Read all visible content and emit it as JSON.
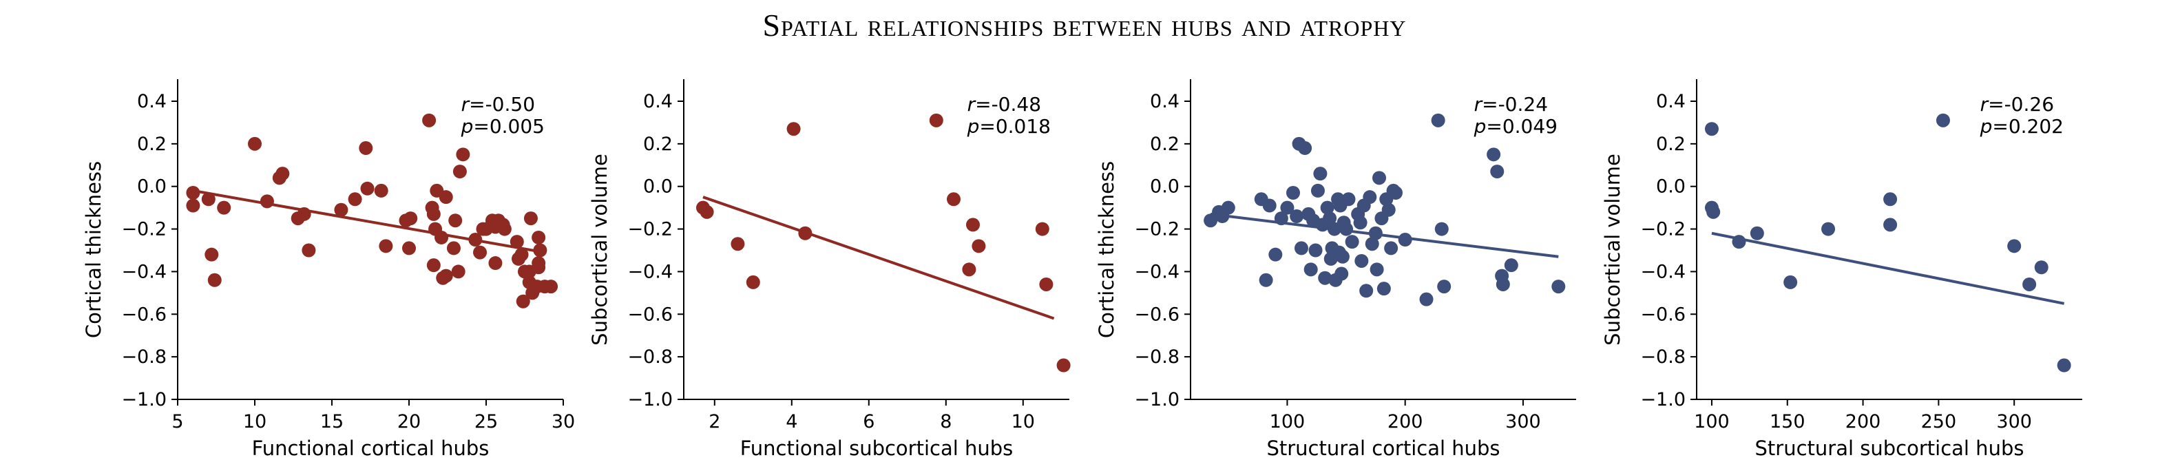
{
  "title": "Spatial relationships between hubs and atrophy",
  "colors": {
    "red": "#8f2a22",
    "blue": "#3e4f7c"
  },
  "chart_data": [
    {
      "type": "scatter",
      "color": "red",
      "xlabel": "Functional cortical hubs",
      "ylabel": "Cortical thickness",
      "xlim": [
        5,
        30
      ],
      "ylim": [
        -1.0,
        0.45
      ],
      "xticks": [
        5,
        10,
        15,
        20,
        25,
        30
      ],
      "xtick_labels": [
        "5",
        "10",
        "15",
        "20",
        "25",
        "30"
      ],
      "yticks": [
        -1.0,
        -0.8,
        -0.6,
        -0.4,
        -0.2,
        0.0,
        0.2,
        0.4
      ],
      "ytick_labels": [
        "−1.0",
        "−0.8",
        "−0.6",
        "−0.4",
        "−0.2",
        "0.0",
        "0.2",
        "0.4"
      ],
      "r_text": "=-0.50",
      "p_text": "=0.005",
      "fit": [
        [
          6,
          -0.02
        ],
        [
          28.8,
          -0.31
        ]
      ],
      "points": [
        [
          6,
          -0.03
        ],
        [
          6,
          -0.09
        ],
        [
          7,
          -0.06
        ],
        [
          7.2,
          -0.32
        ],
        [
          7.4,
          -0.44
        ],
        [
          8,
          -0.1
        ],
        [
          10,
          0.2
        ],
        [
          10.8,
          -0.07
        ],
        [
          11.6,
          0.04
        ],
        [
          11.8,
          0.06
        ],
        [
          12.8,
          -0.15
        ],
        [
          13.2,
          -0.13
        ],
        [
          13.5,
          -0.3
        ],
        [
          15.6,
          -0.11
        ],
        [
          16.5,
          -0.06
        ],
        [
          17.2,
          0.18
        ],
        [
          17.3,
          -0.01
        ],
        [
          18.2,
          -0.02
        ],
        [
          18.5,
          -0.28
        ],
        [
          19.8,
          -0.16
        ],
        [
          20.1,
          -0.15
        ],
        [
          20,
          -0.29
        ],
        [
          21.3,
          0.31
        ],
        [
          21.5,
          -0.1
        ],
        [
          21.6,
          -0.13
        ],
        [
          21.8,
          -0.02
        ],
        [
          21.7,
          -0.2
        ],
        [
          21.6,
          -0.37
        ],
        [
          22.1,
          -0.24
        ],
        [
          22.2,
          -0.43
        ],
        [
          22.4,
          -0.42
        ],
        [
          22.4,
          -0.05
        ],
        [
          22.9,
          -0.29
        ],
        [
          23,
          -0.16
        ],
        [
          23.2,
          -0.4
        ],
        [
          23.3,
          0.07
        ],
        [
          23.5,
          0.15
        ],
        [
          24.3,
          -0.25
        ],
        [
          24.6,
          -0.31
        ],
        [
          24.8,
          -0.2
        ],
        [
          25,
          -0.2
        ],
        [
          25.4,
          -0.16
        ],
        [
          25.6,
          -0.19
        ],
        [
          25.6,
          -0.36
        ],
        [
          25.8,
          -0.16
        ],
        [
          26.1,
          -0.18
        ],
        [
          26.2,
          -0.2
        ],
        [
          27,
          -0.26
        ],
        [
          27.1,
          -0.34
        ],
        [
          27.3,
          -0.32
        ],
        [
          27.5,
          -0.4
        ],
        [
          27.4,
          -0.54
        ],
        [
          27.8,
          -0.45
        ],
        [
          27.9,
          -0.15
        ],
        [
          27.8,
          -0.4
        ],
        [
          28,
          -0.5
        ],
        [
          28.3,
          -0.47
        ],
        [
          28.4,
          -0.36
        ],
        [
          28.4,
          -0.24
        ],
        [
          28.5,
          -0.3
        ],
        [
          28.4,
          -0.38
        ],
        [
          28.8,
          -0.47
        ],
        [
          29.2,
          -0.47
        ]
      ]
    },
    {
      "type": "scatter",
      "color": "red",
      "xlabel": "Functional subcortical hubs",
      "ylabel": "Subcortical volume",
      "xlim": [
        1.2,
        11.2
      ],
      "ylim": [
        -1.0,
        0.45
      ],
      "xticks": [
        2,
        4,
        6,
        8,
        10
      ],
      "xtick_labels": [
        "2",
        "4",
        "6",
        "8",
        "10"
      ],
      "yticks": [
        -1.0,
        -0.8,
        -0.6,
        -0.4,
        -0.2,
        0.0,
        0.2,
        0.4
      ],
      "ytick_labels": [
        "−1.0",
        "−0.8",
        "−0.6",
        "−0.4",
        "−0.2",
        "0.0",
        "0.2",
        "0.4"
      ],
      "r_text": "=-0.48",
      "p_text": "=0.018",
      "fit": [
        [
          1.7,
          -0.05
        ],
        [
          10.8,
          -0.62
        ]
      ],
      "points": [
        [
          1.7,
          -0.1
        ],
        [
          1.8,
          -0.12
        ],
        [
          2.6,
          -0.27
        ],
        [
          3,
          -0.45
        ],
        [
          4.05,
          0.27
        ],
        [
          4.35,
          -0.22
        ],
        [
          7.75,
          0.31
        ],
        [
          8.2,
          -0.06
        ],
        [
          8.6,
          -0.39
        ],
        [
          8.7,
          -0.18
        ],
        [
          8.85,
          -0.28
        ],
        [
          10.5,
          -0.2
        ],
        [
          10.6,
          -0.46
        ],
        [
          11.05,
          -0.84
        ]
      ]
    },
    {
      "type": "scatter",
      "color": "blue",
      "xlabel": "Structural cortical hubs",
      "ylabel": "Cortical thickness",
      "xlim": [
        18,
        345
      ],
      "ylim": [
        -1.0,
        0.45
      ],
      "xticks": [
        100,
        200,
        300
      ],
      "xtick_labels": [
        "100",
        "200",
        "300"
      ],
      "yticks": [
        -1.0,
        -0.8,
        -0.6,
        -0.4,
        -0.2,
        0.0,
        0.2,
        0.4
      ],
      "ytick_labels": [
        "−1.0",
        "−0.8",
        "−0.6",
        "−0.4",
        "−0.2",
        "0.0",
        "0.2",
        "0.4"
      ],
      "r_text": "=-0.24",
      "p_text": "=0.049",
      "fit": [
        [
          35,
          -0.13
        ],
        [
          330,
          -0.33
        ]
      ],
      "points": [
        [
          35,
          -0.16
        ],
        [
          42,
          -0.12
        ],
        [
          45,
          -0.14
        ],
        [
          50,
          -0.1
        ],
        [
          78,
          -0.06
        ],
        [
          82,
          -0.44
        ],
        [
          85,
          -0.09
        ],
        [
          90,
          -0.32
        ],
        [
          95,
          -0.15
        ],
        [
          100,
          -0.1
        ],
        [
          105,
          -0.03
        ],
        [
          108,
          -0.14
        ],
        [
          110,
          0.2
        ],
        [
          112,
          -0.29
        ],
        [
          115,
          0.18
        ],
        [
          118,
          -0.13
        ],
        [
          120,
          -0.39
        ],
        [
          122,
          -0.16
        ],
        [
          124,
          -0.3
        ],
        [
          126,
          -0.02
        ],
        [
          128,
          0.06
        ],
        [
          130,
          -0.18
        ],
        [
          132,
          -0.43
        ],
        [
          134,
          -0.1
        ],
        [
          136,
          -0.15
        ],
        [
          137,
          -0.34
        ],
        [
          138,
          -0.29
        ],
        [
          140,
          -0.2
        ],
        [
          141,
          -0.44
        ],
        [
          143,
          -0.06
        ],
        [
          144,
          -0.31
        ],
        [
          145,
          -0.09
        ],
        [
          146,
          -0.41
        ],
        [
          147,
          -0.33
        ],
        [
          148,
          -0.17
        ],
        [
          150,
          -0.2
        ],
        [
          152,
          -0.06
        ],
        [
          155,
          -0.26
        ],
        [
          160,
          -0.13
        ],
        [
          162,
          -0.17
        ],
        [
          163,
          -0.35
        ],
        [
          165,
          -0.09
        ],
        [
          167,
          -0.49
        ],
        [
          170,
          -0.05
        ],
        [
          172,
          -0.27
        ],
        [
          175,
          -0.22
        ],
        [
          176,
          -0.39
        ],
        [
          178,
          0.04
        ],
        [
          180,
          -0.15
        ],
        [
          182,
          -0.48
        ],
        [
          184,
          -0.06
        ],
        [
          186,
          -0.11
        ],
        [
          188,
          -0.29
        ],
        [
          190,
          -0.02
        ],
        [
          192,
          -0.03
        ],
        [
          200,
          -0.25
        ],
        [
          218,
          -0.53
        ],
        [
          228,
          0.31
        ],
        [
          231,
          -0.2
        ],
        [
          233,
          -0.47
        ],
        [
          275,
          0.15
        ],
        [
          278,
          0.07
        ],
        [
          282,
          -0.42
        ],
        [
          283,
          -0.46
        ],
        [
          290,
          -0.37
        ],
        [
          330,
          -0.47
        ]
      ]
    },
    {
      "type": "scatter",
      "color": "blue",
      "xlabel": "Structural subcortical hubs",
      "ylabel": "Subcortical volume",
      "xlim": [
        90,
        345
      ],
      "ylim": [
        -1.0,
        0.45
      ],
      "xticks": [
        100,
        150,
        200,
        250,
        300
      ],
      "xtick_labels": [
        "100",
        "150",
        "200",
        "250",
        "300"
      ],
      "yticks": [
        -1.0,
        -0.8,
        -0.6,
        -0.4,
        -0.2,
        0.0,
        0.2,
        0.4
      ],
      "ytick_labels": [
        "−1.0",
        "−0.8",
        "−0.6",
        "−0.4",
        "−0.2",
        "0.0",
        "0.2",
        "0.4"
      ],
      "r_text": "=-0.26",
      "p_text": "=0.202",
      "fit": [
        [
          100,
          -0.22
        ],
        [
          333,
          -0.55
        ]
      ],
      "points": [
        [
          100,
          0.27
        ],
        [
          100,
          -0.1
        ],
        [
          101,
          -0.12
        ],
        [
          118,
          -0.26
        ],
        [
          130,
          -0.22
        ],
        [
          152,
          -0.45
        ],
        [
          177,
          -0.2
        ],
        [
          218,
          -0.06
        ],
        [
          218,
          -0.18
        ],
        [
          253,
          0.31
        ],
        [
          300,
          -0.28
        ],
        [
          310,
          -0.46
        ],
        [
          318,
          -0.38
        ],
        [
          333,
          -0.84
        ]
      ]
    }
  ]
}
